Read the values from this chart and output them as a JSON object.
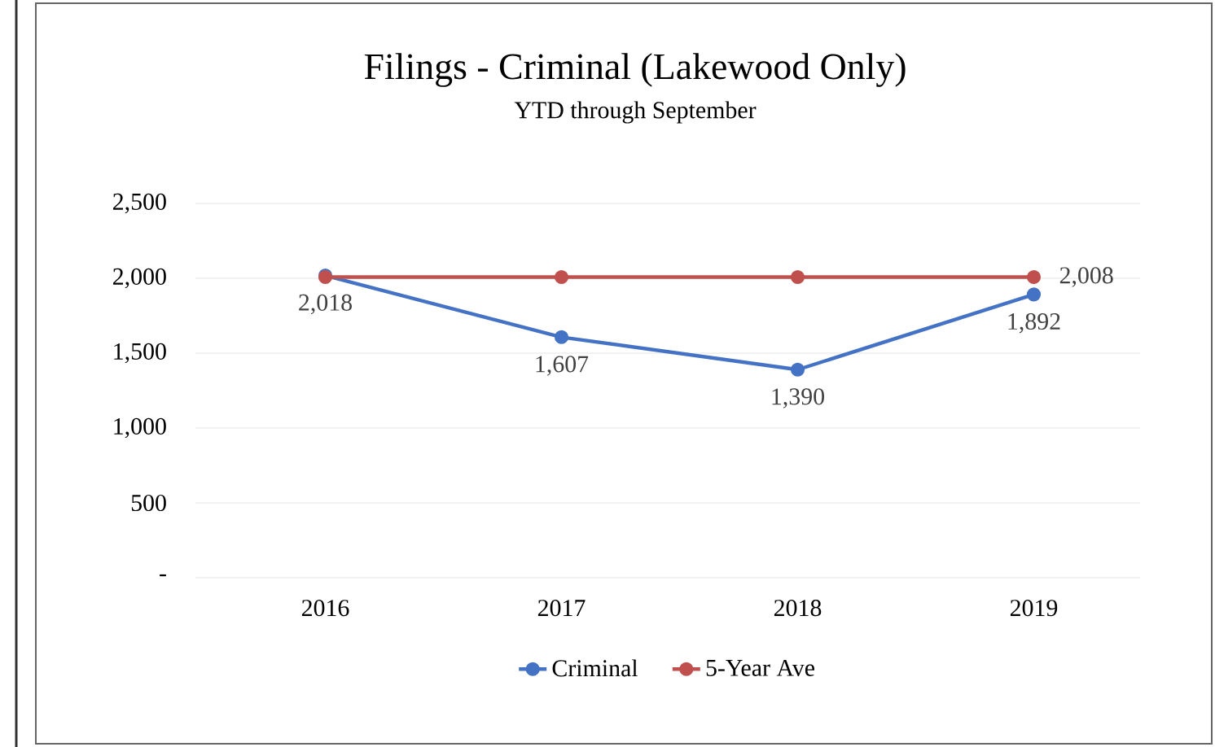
{
  "chart_data": {
    "type": "line",
    "title": "Filings - Criminal (Lakewood Only)",
    "subtitle": "YTD through September",
    "categories": [
      "2016",
      "2017",
      "2018",
      "2019"
    ],
    "series": [
      {
        "name": "Criminal",
        "color": "#4472c4",
        "values": [
          2018,
          1607,
          1390,
          1892
        ],
        "value_labels": [
          "2,018",
          "1,607",
          "1,390",
          "1,892"
        ]
      },
      {
        "name": "5-Year Ave",
        "color": "#c0504d",
        "values": [
          2008,
          2008,
          2008,
          2008
        ],
        "value_labels": [
          null,
          null,
          null,
          "2,008"
        ]
      }
    ],
    "ylim": [
      0,
      2500
    ],
    "yticks": [
      {
        "value": 0,
        "label": "-"
      },
      {
        "value": 500,
        "label": "500"
      },
      {
        "value": 1000,
        "label": "1,000"
      },
      {
        "value": 1500,
        "label": "1,500"
      },
      {
        "value": 2000,
        "label": "2,000"
      },
      {
        "value": 2500,
        "label": "2,500"
      }
    ],
    "grid": "y",
    "legend": "bottom",
    "marker": "circle",
    "line_style": "solid"
  }
}
